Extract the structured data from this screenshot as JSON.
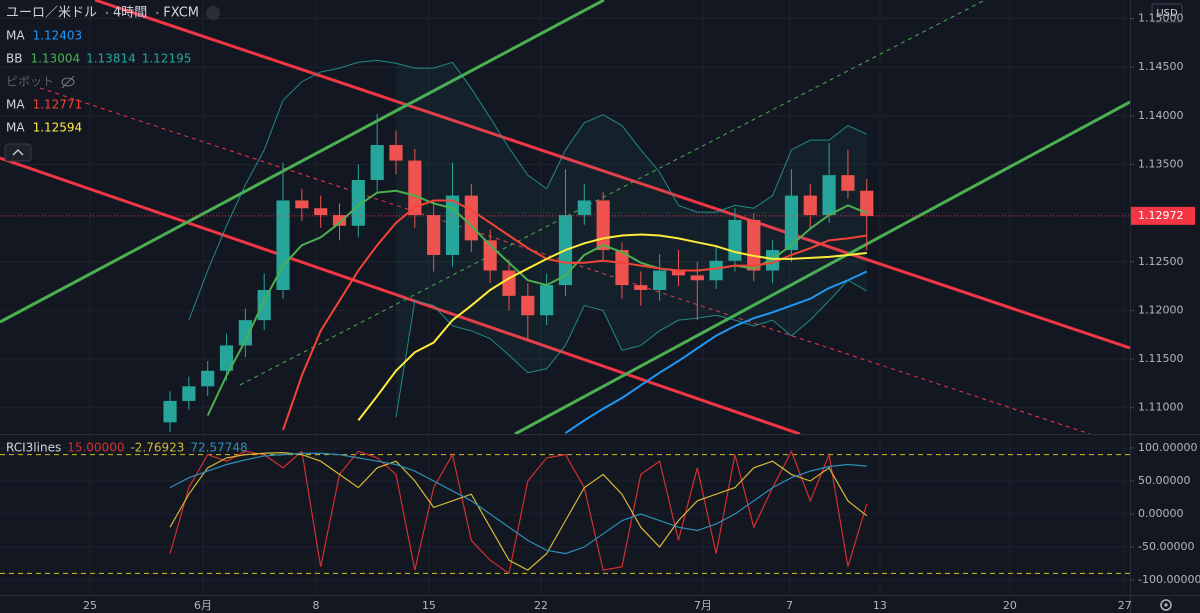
{
  "header": {
    "symbol": "ユーロ／米ドル",
    "interval": "4時間",
    "source": "FXCM",
    "currency": "USD"
  },
  "chart_data": [
    {
      "type": "candlestick",
      "open": [
        1.1085,
        1.1107,
        1.1122,
        1.1138,
        1.1164,
        1.119,
        1.1221,
        1.1313,
        1.1305,
        1.1298,
        1.1287,
        1.1334,
        1.137,
        1.1354,
        1.1298,
        1.1257,
        1.1318,
        1.1272,
        1.1241,
        1.1215,
        1.1195,
        1.1226,
        1.1298,
        1.1313,
        1.1262,
        1.1226,
        1.1221,
        1.1241,
        1.1236,
        1.1231,
        1.1251,
        1.1293,
        1.1241,
        1.1262,
        1.1318,
        1.1298,
        1.1339,
        1.1323
      ],
      "high": [
        1.1117,
        1.1132,
        1.1148,
        1.1176,
        1.1202,
        1.1238,
        1.1352,
        1.1325,
        1.1318,
        1.131,
        1.135,
        1.1402,
        1.1385,
        1.1366,
        1.1312,
        1.1352,
        1.133,
        1.1283,
        1.1252,
        1.1228,
        1.1238,
        1.1345,
        1.133,
        1.1322,
        1.127,
        1.124,
        1.1258,
        1.1262,
        1.125,
        1.1265,
        1.1305,
        1.13,
        1.1272,
        1.1345,
        1.133,
        1.1372,
        1.1365,
        1.1335
      ],
      "low": [
        1.1075,
        1.1098,
        1.1112,
        1.1128,
        1.1152,
        1.118,
        1.1212,
        1.1292,
        1.1285,
        1.1272,
        1.1275,
        1.1322,
        1.134,
        1.1285,
        1.124,
        1.1245,
        1.126,
        1.1228,
        1.12,
        1.1169,
        1.1185,
        1.1215,
        1.1288,
        1.125,
        1.1212,
        1.1205,
        1.121,
        1.1225,
        1.119,
        1.1222,
        1.124,
        1.123,
        1.1228,
        1.125,
        1.1285,
        1.129,
        1.1315,
        1.1262
      ],
      "close": [
        1.1107,
        1.1122,
        1.1138,
        1.1164,
        1.119,
        1.1221,
        1.1313,
        1.1305,
        1.1298,
        1.1287,
        1.1334,
        1.137,
        1.1354,
        1.1298,
        1.1257,
        1.1318,
        1.1272,
        1.1241,
        1.1215,
        1.1195,
        1.1226,
        1.1298,
        1.1313,
        1.1262,
        1.1226,
        1.1221,
        1.1241,
        1.1236,
        1.1231,
        1.1251,
        1.1293,
        1.1241,
        1.1262,
        1.1318,
        1.1298,
        1.1339,
        1.1323,
        1.1297
      ],
      "up_color": "#26a69a",
      "down_color": "#ef5350",
      "series": [
        {
          "name": "MA",
          "color": "#2196f3",
          "legend_values": [
            "1.12403"
          ],
          "values": [
            null,
            null,
            null,
            null,
            null,
            null,
            null,
            null,
            null,
            null,
            null,
            null,
            null,
            null,
            null,
            null,
            null,
            null,
            null,
            null,
            null,
            1.1074,
            1.1087,
            1.1099,
            1.111,
            1.1123,
            1.1136,
            1.1148,
            1.1161,
            1.1174,
            1.1184,
            1.1192,
            1.1198,
            1.1205,
            1.1212,
            1.1223,
            1.1231,
            1.124
          ]
        },
        {
          "name": "BB",
          "color": "#4caf50",
          "band_color": "#26a69a",
          "legend_values": [
            "1.13004",
            "1.13814",
            "1.12195"
          ],
          "values": [
            null,
            null,
            1.1092,
            1.1133,
            1.1169,
            1.121,
            1.1246,
            1.1267,
            1.1275,
            1.129,
            1.1308,
            1.1321,
            1.1323,
            1.1318,
            1.131,
            1.1305,
            1.1287,
            1.1267,
            1.1249,
            1.1231,
            1.1226,
            1.1236,
            1.1257,
            1.1267,
            1.126,
            1.1249,
            1.1243,
            1.1241,
            1.1241,
            1.1243,
            1.1246,
            1.1243,
            1.1253,
            1.1267,
            1.1284,
            1.1298,
            1.1308,
            1.13
          ],
          "upper": [
            null,
            1.119,
            1.1241,
            1.1287,
            1.1329,
            1.1365,
            1.1416,
            1.1435,
            1.1445,
            1.1449,
            1.1455,
            1.1457,
            1.1454,
            1.1449,
            1.1449,
            1.1455,
            1.1428,
            1.1398,
            1.1367,
            1.1339,
            1.1325,
            1.1365,
            1.1393,
            1.1401,
            1.139,
            1.1365,
            1.1342,
            1.1308,
            1.1301,
            1.1301,
            1.1308,
            1.1305,
            1.1318,
            1.1365,
            1.1375,
            1.1375,
            1.139,
            1.1381
          ],
          "lower": [
            null,
            null,
            null,
            null,
            null,
            null,
            null,
            null,
            null,
            null,
            null,
            null,
            1.109,
            1.121,
            1.1205,
            1.1184,
            1.1179,
            1.1171,
            1.1154,
            1.1136,
            1.114,
            1.1164,
            1.1205,
            1.12,
            1.1159,
            1.1164,
            1.1179,
            1.119,
            1.1192,
            1.1195,
            1.119,
            1.1184,
            1.119,
            1.1174,
            1.119,
            1.121,
            1.1231,
            1.122
          ]
        },
        {
          "name": "ピボット",
          "visible": false
        },
        {
          "name": "MA",
          "color": "#f44336",
          "legend_values": [
            "1.12771"
          ],
          "values": [
            null,
            null,
            null,
            null,
            null,
            null,
            1.1077,
            1.1133,
            1.1179,
            1.121,
            1.1241,
            1.1267,
            1.129,
            1.1306,
            1.1313,
            1.1313,
            1.1303,
            1.129,
            1.1277,
            1.1264,
            1.1253,
            1.1249,
            1.1249,
            1.1251,
            1.1249,
            1.1246,
            1.1243,
            1.1241,
            1.1241,
            1.1243,
            1.1246,
            1.1246,
            1.1249,
            1.1257,
            1.1264,
            1.1272,
            1.1274,
            1.1277
          ]
        },
        {
          "name": "MA",
          "color": "#ffeb3b",
          "legend_values": [
            "1.12594"
          ],
          "values": [
            null,
            null,
            null,
            null,
            null,
            null,
            null,
            null,
            null,
            null,
            1.1087,
            1.1112,
            1.1138,
            1.1157,
            1.1167,
            1.119,
            1.1205,
            1.1221,
            1.1233,
            1.1243,
            1.1253,
            1.1262,
            1.1269,
            1.1274,
            1.1277,
            1.1278,
            1.1277,
            1.1274,
            1.127,
            1.1266,
            1.126,
            1.1256,
            1.1253,
            1.1253,
            1.1254,
            1.1255,
            1.1257,
            1.1259
          ]
        }
      ],
      "last_price": 1.12972,
      "last_price_color": "#f23645",
      "xlim": [
        -9.03,
        50.98
      ],
      "ylim": [
        1.1073,
        1.1519
      ],
      "yticks": [
        {
          "value": 1.15,
          "label": "1.15000"
        },
        {
          "value": 1.145,
          "label": "1.14500"
        },
        {
          "value": 1.14,
          "label": "1.14000"
        },
        {
          "value": 1.135,
          "label": "1.13500"
        },
        {
          "value": 1.13,
          "label": "1.13000"
        },
        {
          "value": 1.125,
          "label": "1.12500"
        },
        {
          "value": 1.12,
          "label": "1.12000"
        },
        {
          "value": 1.115,
          "label": "1.11500"
        },
        {
          "value": 1.11,
          "label": "1.11000"
        }
      ],
      "grid": true
    },
    {
      "type": "line",
      "title": "RCI3lines",
      "series": [
        {
          "color": "#d32f2f",
          "legend_values": [
            "15.00000"
          ],
          "values": [
            -60,
            40,
            90,
            80,
            95,
            90,
            70,
            95,
            -80,
            60,
            95,
            85,
            60,
            -85,
            40,
            90,
            -40,
            -70,
            -90,
            50,
            85,
            90,
            40,
            -85,
            -80,
            60,
            80,
            -40,
            70,
            -60,
            90,
            -20,
            40,
            95,
            20,
            90,
            -80,
            15
          ]
        },
        {
          "color": "#d4b836",
          "legend_values": [
            "-2.76923"
          ],
          "values": [
            -20,
            30,
            70,
            85,
            90,
            92,
            93,
            90,
            80,
            60,
            40,
            70,
            80,
            50,
            10,
            20,
            30,
            -20,
            -70,
            -85,
            -60,
            -10,
            40,
            60,
            30,
            -20,
            -50,
            -10,
            20,
            30,
            40,
            70,
            80,
            60,
            50,
            70,
            20,
            -2.76923
          ]
        },
        {
          "color": "#2d8fb5",
          "legend_values": [
            "72.57748"
          ],
          "values": [
            40,
            55,
            65,
            75,
            82,
            88,
            90,
            92,
            92,
            90,
            85,
            80,
            75,
            65,
            50,
            35,
            20,
            0,
            -20,
            -40,
            -55,
            -60,
            -50,
            -30,
            -10,
            0,
            -10,
            -20,
            -25,
            -15,
            0,
            20,
            40,
            55,
            65,
            72,
            75,
            72.57748
          ]
        }
      ],
      "levels": [
        90,
        -90
      ],
      "level_color": "#d4c21a",
      "xlim": [
        -9.03,
        50.98
      ],
      "ylim": [
        -122.7,
        119.7
      ],
      "yticks": [
        {
          "value": 100,
          "label": "100.00000"
        },
        {
          "value": 50,
          "label": "50.00000"
        },
        {
          "value": 0,
          "label": "0.00000"
        },
        {
          "value": -50,
          "label": "-50.00000"
        },
        {
          "value": -100,
          "label": "-100.00000"
        }
      ],
      "xticks": [
        {
          "value": -4.25,
          "label": "25"
        },
        {
          "value": 1.75,
          "label": "6月"
        },
        {
          "value": 7.75,
          "label": "8"
        },
        {
          "value": 13.75,
          "label": "15"
        },
        {
          "value": 19.7,
          "label": "22"
        },
        {
          "value": 28.3,
          "label": "7月"
        },
        {
          "value": 32.9,
          "label": "7"
        },
        {
          "value": 37.7,
          "label": "13"
        },
        {
          "value": 44.6,
          "label": "20"
        },
        {
          "value": 50.7,
          "label": "27"
        }
      ],
      "grid": true
    }
  ]
}
